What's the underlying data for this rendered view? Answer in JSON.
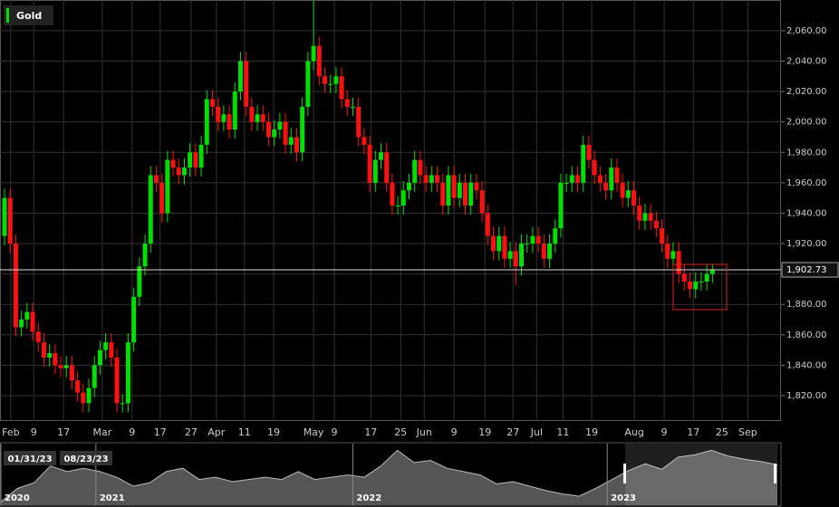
{
  "chart_data": [
    {
      "type": "candlestick",
      "legend": "Gold",
      "up_color": "#00e000",
      "down_color": "#ff1010",
      "open": [
        1925,
        1950,
        1920,
        1865,
        1870,
        1875,
        1862,
        1855,
        1845,
        1848,
        1840,
        1838,
        1840,
        1830,
        1822,
        1815,
        1825,
        1840,
        1850,
        1855,
        1845,
        1815,
        1815,
        1855,
        1885,
        1905,
        1920,
        1965,
        1960,
        1940,
        1975,
        1970,
        1965,
        1970,
        1980,
        1970,
        1985,
        2015,
        2010,
        2000,
        2005,
        1995,
        2020,
        2040,
        2010,
        2000,
        2005,
        2000,
        1990,
        1995,
        2000,
        1985,
        1990,
        1980,
        2010,
        2040,
        2050,
        2030,
        2025,
        2025,
        2030,
        2015,
        2010,
        2010,
        1990,
        1985,
        1960,
        1975,
        1980,
        1960,
        1945,
        1945,
        1955,
        1960,
        1975,
        1965,
        1960,
        1965,
        1960,
        1945,
        1965,
        1950,
        1960,
        1945,
        1960,
        1955,
        1940,
        1925,
        1915,
        1925,
        1910,
        1915,
        1905,
        1920,
        1920,
        1925,
        1920,
        1910,
        1920,
        1930,
        1960,
        1960,
        1965,
        1960,
        1985,
        1975,
        1965,
        1960,
        1955,
        1970,
        1960,
        1950,
        1955,
        1945,
        1935,
        1940,
        1935,
        1930,
        1920,
        1910,
        1915,
        1900,
        1895,
        1890,
        1895,
        1895,
        1900
      ],
      "high": [
        1956,
        1956,
        1926,
        1876,
        1881,
        1881,
        1868,
        1861,
        1854,
        1854,
        1846,
        1846,
        1846,
        1836,
        1828,
        1831,
        1846,
        1856,
        1861,
        1861,
        1851,
        1821,
        1861,
        1891,
        1911,
        1926,
        1971,
        1971,
        1966,
        1981,
        1981,
        1976,
        1976,
        1986,
        1986,
        1991,
        2021,
        2021,
        2016,
        2011,
        2011,
        2026,
        2046,
        2046,
        2016,
        2011,
        2011,
        2006,
        2001,
        2006,
        2006,
        1996,
        1996,
        2016,
        2046,
        2080,
        2056,
        2036,
        2031,
        2036,
        2036,
        2021,
        2016,
        2016,
        1996,
        1991,
        1981,
        1986,
        1986,
        1966,
        1951,
        1961,
        1966,
        1981,
        1981,
        1971,
        1971,
        1971,
        1966,
        1971,
        1971,
        1966,
        1966,
        1966,
        1966,
        1961,
        1946,
        1931,
        1931,
        1931,
        1921,
        1921,
        1926,
        1926,
        1931,
        1931,
        1926,
        1926,
        1936,
        1966,
        1966,
        1971,
        1971,
        1991,
        1991,
        1981,
        1971,
        1966,
        1976,
        1976,
        1966,
        1961,
        1961,
        1951,
        1946,
        1946,
        1941,
        1936,
        1926,
        1921,
        1921,
        1906,
        1901,
        1901,
        1901,
        1906,
        1906
      ],
      "low": [
        1919,
        1914,
        1859,
        1859,
        1864,
        1856,
        1849,
        1839,
        1839,
        1834,
        1832,
        1832,
        1824,
        1816,
        1809,
        1809,
        1819,
        1834,
        1844,
        1839,
        1809,
        1809,
        1809,
        1849,
        1879,
        1899,
        1914,
        1954,
        1934,
        1934,
        1964,
        1959,
        1959,
        1964,
        1964,
        1964,
        1979,
        2004,
        1994,
        1994,
        1989,
        1989,
        2014,
        2004,
        1994,
        1994,
        1994,
        1984,
        1984,
        1989,
        1979,
        1979,
        1974,
        1974,
        2004,
        2034,
        2024,
        2019,
        2019,
        2019,
        2009,
        2004,
        2004,
        1984,
        1979,
        1954,
        1954,
        1969,
        1954,
        1939,
        1939,
        1939,
        1949,
        1954,
        1959,
        1954,
        1954,
        1954,
        1939,
        1939,
        1944,
        1944,
        1939,
        1939,
        1949,
        1934,
        1919,
        1909,
        1909,
        1904,
        1904,
        1893,
        1899,
        1914,
        1914,
        1914,
        1904,
        1904,
        1914,
        1924,
        1954,
        1954,
        1954,
        1954,
        1969,
        1959,
        1954,
        1949,
        1949,
        1954,
        1944,
        1944,
        1939,
        1929,
        1929,
        1929,
        1924,
        1914,
        1904,
        1904,
        1894,
        1889,
        1884,
        1884,
        1889,
        1889,
        1894
      ],
      "close": [
        1950,
        1920,
        1865,
        1870,
        1875,
        1862,
        1855,
        1845,
        1848,
        1840,
        1838,
        1840,
        1830,
        1822,
        1815,
        1825,
        1840,
        1850,
        1855,
        1845,
        1815,
        1815,
        1855,
        1885,
        1905,
        1920,
        1965,
        1960,
        1940,
        1975,
        1970,
        1965,
        1970,
        1980,
        1970,
        1985,
        2015,
        2010,
        2000,
        2005,
        1995,
        2020,
        2040,
        2010,
        2000,
        2005,
        2000,
        1990,
        1995,
        2000,
        1985,
        1990,
        1980,
        2010,
        2040,
        2050,
        2030,
        2025,
        2025,
        2030,
        2015,
        2010,
        2010,
        1990,
        1985,
        1960,
        1975,
        1980,
        1960,
        1945,
        1945,
        1955,
        1960,
        1975,
        1965,
        1960,
        1965,
        1960,
        1945,
        1965,
        1950,
        1960,
        1945,
        1960,
        1955,
        1940,
        1925,
        1915,
        1925,
        1910,
        1915,
        1905,
        1920,
        1920,
        1925,
        1920,
        1910,
        1920,
        1930,
        1960,
        1960,
        1965,
        1960,
        1985,
        1975,
        1965,
        1960,
        1955,
        1970,
        1960,
        1950,
        1955,
        1945,
        1935,
        1940,
        1935,
        1930,
        1920,
        1910,
        1915,
        1900,
        1895,
        1890,
        1895,
        1895,
        1900,
        1902.73
      ],
      "last_price": {
        "value": 1902.73,
        "label": "1,902.73"
      },
      "xlim": [
        -0.81,
        138.2
      ],
      "xticks": [
        {
          "value": 1.1,
          "label": "Feb"
        },
        {
          "value": 5.2,
          "label": "9"
        },
        {
          "value": 10.5,
          "label": "17"
        },
        {
          "value": 17.4,
          "label": "Mar"
        },
        {
          "value": 22.7,
          "label": "9"
        },
        {
          "value": 27.7,
          "label": "17"
        },
        {
          "value": 33.2,
          "label": "27"
        },
        {
          "value": 37.7,
          "label": "Apr"
        },
        {
          "value": 42.7,
          "label": "11"
        },
        {
          "value": 47.9,
          "label": "19"
        },
        {
          "value": 55,
          "label": "May"
        },
        {
          "value": 58.7,
          "label": "9"
        },
        {
          "value": 65.2,
          "label": "17"
        },
        {
          "value": 70.5,
          "label": "25"
        },
        {
          "value": 74.7,
          "label": "Jun"
        },
        {
          "value": 80,
          "label": "9"
        },
        {
          "value": 85.5,
          "label": "19"
        },
        {
          "value": 90.5,
          "label": "27"
        },
        {
          "value": 94.7,
          "label": "Jul"
        },
        {
          "value": 99.4,
          "label": "11"
        },
        {
          "value": 104.5,
          "label": "19"
        },
        {
          "value": 112.1,
          "label": "Aug"
        },
        {
          "value": 117.4,
          "label": "9"
        },
        {
          "value": 122.6,
          "label": "17"
        },
        {
          "value": 127.7,
          "label": "25"
        },
        {
          "value": 132.3,
          "label": "Sep"
        }
      ],
      "ylim": [
        1803.3,
        2080.2
      ],
      "yticks": [
        {
          "value": 1820,
          "label": "1,820.00"
        },
        {
          "value": 1840,
          "label": "1,840.00"
        },
        {
          "value": 1860,
          "label": "1,860.00"
        },
        {
          "value": 1880,
          "label": "1,880.00"
        },
        {
          "value": 1900,
          "label": "1,900.00"
        },
        {
          "value": 1920,
          "label": "1,920.00"
        },
        {
          "value": 1940,
          "label": "1,940.00"
        },
        {
          "value": 1960,
          "label": "1,960.00"
        },
        {
          "value": 1980,
          "label": "1,980.00"
        },
        {
          "value": 2000,
          "label": "2,000.00"
        },
        {
          "value": 2020,
          "label": "2,020.00"
        },
        {
          "value": 2040,
          "label": "2,040.00"
        },
        {
          "value": 2060,
          "label": "2,060.00"
        }
      ],
      "grid": true
    },
    {
      "type": "area",
      "color": "#bbbbbb",
      "window": [
        "01/31/23",
        "08/23/23"
      ],
      "values": [
        1580,
        1700,
        1750,
        1900,
        1850,
        1880,
        1850,
        1800,
        1720,
        1750,
        1850,
        1880,
        1780,
        1800,
        1760,
        1780,
        1800,
        1780,
        1850,
        1780,
        1800,
        1820,
        1800,
        1900,
        2040,
        1930,
        1950,
        1880,
        1850,
        1820,
        1740,
        1760,
        1720,
        1680,
        1650,
        1630,
        1700,
        1780,
        1860,
        1920,
        1870,
        1980,
        2000,
        2040,
        1990,
        1960,
        1940,
        1910
      ],
      "xlim": [
        0,
        47
      ],
      "ylim": [
        1550,
        2100
      ],
      "xticks": [
        {
          "value": 0,
          "label": "2020"
        },
        {
          "value": 5.75,
          "label": "2021"
        },
        {
          "value": 21.3,
          "label": "2022"
        },
        {
          "value": 36.7,
          "label": "2023"
        }
      ]
    }
  ]
}
